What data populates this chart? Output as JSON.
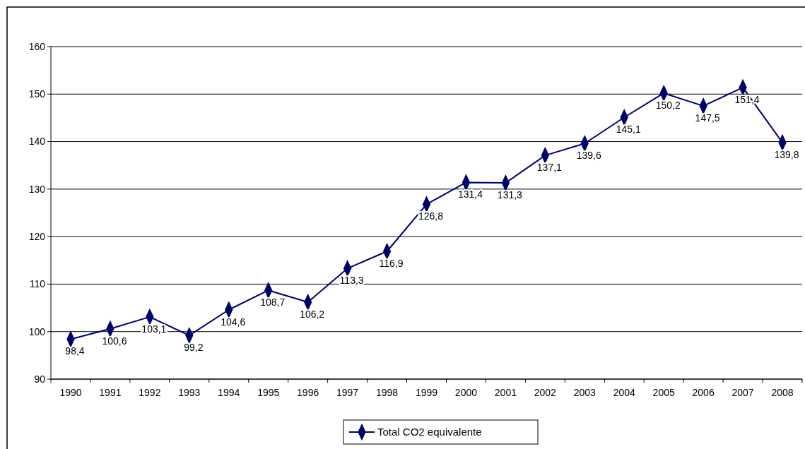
{
  "chart_data": {
    "type": "line",
    "categories": [
      "1990",
      "1991",
      "1992",
      "1993",
      "1994",
      "1995",
      "1996",
      "1997",
      "1998",
      "1999",
      "2000",
      "2001",
      "2002",
      "2003",
      "2004",
      "2005",
      "2006",
      "2007",
      "2008"
    ],
    "series": [
      {
        "name": "Total CO2 equivalente",
        "color": "#000066",
        "values": [
          98.4,
          100.6,
          103.1,
          99.2,
          104.6,
          108.7,
          106.2,
          113.3,
          116.9,
          126.8,
          131.4,
          131.3,
          137.1,
          139.6,
          145.1,
          150.2,
          147.5,
          151.4,
          139.8
        ],
        "value_labels": [
          "98,4",
          "100,6",
          "103,1",
          "99,2",
          "104,6",
          "108,7",
          "106,2",
          "113,3",
          "116,9",
          "126,8",
          "131,4",
          "131,3",
          "137,1",
          "139,6",
          "145,1",
          "150,2",
          "147,5",
          "151,4",
          "139,8"
        ]
      }
    ],
    "ylim": [
      90,
      160
    ],
    "yticks": [
      90,
      100,
      110,
      120,
      130,
      140,
      150,
      160
    ],
    "grid": "y",
    "legend": "bottom",
    "marker": "diamond",
    "line_style": "solid"
  }
}
